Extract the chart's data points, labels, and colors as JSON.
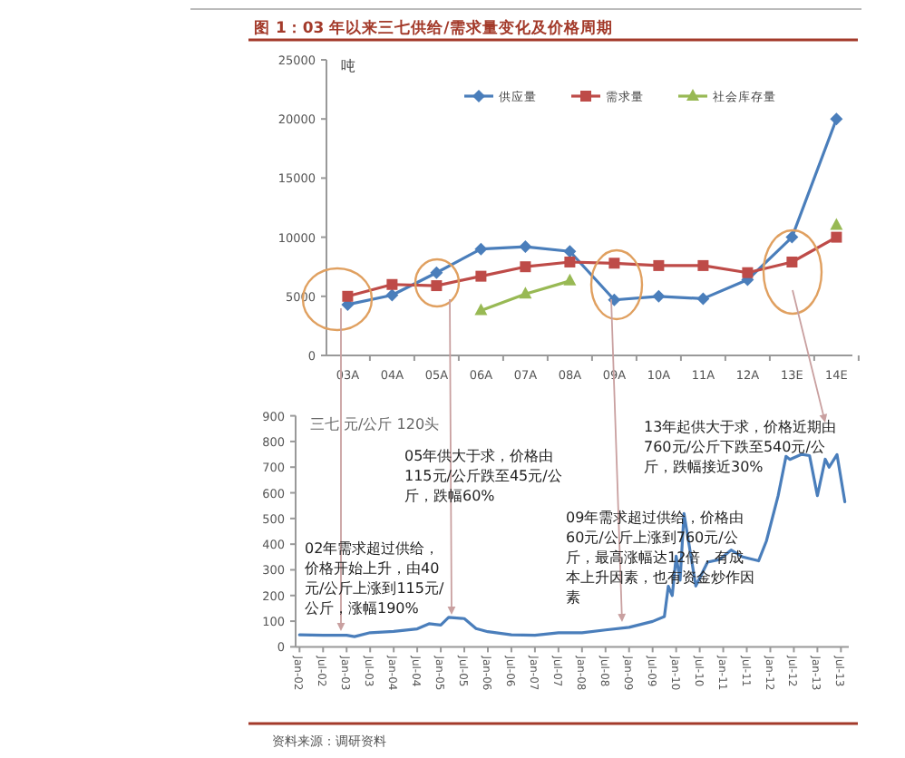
{
  "chart_data": [
    {
      "type": "line",
      "title": "图 1：03 年以来三七供给/需求量变化及价格周期",
      "ylabel": "吨",
      "categories": [
        "03A",
        "04A",
        "05A",
        "06A",
        "07A",
        "08A",
        "09A",
        "10A",
        "11A",
        "12A",
        "13E",
        "14E"
      ],
      "series": [
        {
          "name": "供应量",
          "color": "#4a7ebb",
          "marker": "diamond",
          "values": [
            4300,
            5100,
            7000,
            9000,
            9200,
            8800,
            4700,
            5000,
            4800,
            6400,
            10000,
            20000
          ]
        },
        {
          "name": "需求量",
          "color": "#be4b48",
          "marker": "square",
          "values": [
            5000,
            6000,
            5900,
            6700,
            7500,
            7900,
            7800,
            7600,
            7600,
            7000,
            7900,
            10000
          ]
        },
        {
          "name": "社会库存量",
          "color": "#98b954",
          "marker": "triangle",
          "values": [
            null,
            null,
            null,
            3800,
            5200,
            6300,
            null,
            null,
            null,
            null,
            null,
            11000
          ]
        }
      ],
      "ylim": [
        0,
        25000
      ],
      "yticks": [
        0,
        5000,
        10000,
        15000,
        20000,
        25000
      ],
      "legend": "top",
      "grid": false
    },
    {
      "type": "line",
      "title": "三七 元/公斤 120头",
      "marker": "none",
      "grid": false,
      "legend": false,
      "series": [
        {
          "color": "#4a7ebb",
          "x": [
            "2002-01",
            "2002-07",
            "2003-01",
            "2003-03",
            "2003-07",
            "2004-01",
            "2004-07",
            "2004-10",
            "2005-01",
            "2005-03",
            "2005-07",
            "2005-10",
            "2006-01",
            "2006-07",
            "2007-01",
            "2007-07",
            "2008-01",
            "2008-07",
            "2009-01",
            "2009-07",
            "2009-10",
            "2009-11",
            "2009-12",
            "2010-01",
            "2010-02",
            "2010-03",
            "2010-06",
            "2010-09",
            "2010-12",
            "2011-03",
            "2011-06",
            "2011-10",
            "2011-12",
            "2012-03",
            "2012-05",
            "2012-06",
            "2012-09",
            "2012-11",
            "2013-01",
            "2013-03",
            "2013-04",
            "2013-06",
            "2013-08"
          ],
          "values": [
            47,
            45,
            45,
            40,
            55,
            60,
            70,
            90,
            85,
            115,
            110,
            71,
            59,
            47,
            45,
            55,
            55,
            66,
            76,
            99,
            118,
            236,
            200,
            353,
            260,
            519,
            237,
            330,
            340,
            377,
            350,
            335,
            412,
            589,
            742,
            730,
            750,
            745,
            589,
            731,
            700,
            749,
            565
          ]
        }
      ],
      "xlim": [
        "2001-12",
        "2013-09"
      ],
      "xticks": [
        {
          "value": "2002-01",
          "label": "Jan-02"
        },
        {
          "value": "2002-07",
          "label": "Jul-02"
        },
        {
          "value": "2003-01",
          "label": "Jan-03"
        },
        {
          "value": "2003-07",
          "label": "Jul-03"
        },
        {
          "value": "2004-01",
          "label": "Jan-04"
        },
        {
          "value": "2004-07",
          "label": "Jul-04"
        },
        {
          "value": "2005-01",
          "label": "Jan-05"
        },
        {
          "value": "2005-07",
          "label": "Jul-05"
        },
        {
          "value": "2006-01",
          "label": "Jan-06"
        },
        {
          "value": "2006-07",
          "label": "Jul-06"
        },
        {
          "value": "2007-01",
          "label": "Jan-07"
        },
        {
          "value": "2007-07",
          "label": "Jul-07"
        },
        {
          "value": "2008-01",
          "label": "Jan-08"
        },
        {
          "value": "2008-07",
          "label": "Jul-08"
        },
        {
          "value": "2009-01",
          "label": "Jan-09"
        },
        {
          "value": "2009-07",
          "label": "Jul-09"
        },
        {
          "value": "2010-01",
          "label": "Jan-10"
        },
        {
          "value": "2010-07",
          "label": "Jul-10"
        },
        {
          "value": "2011-01",
          "label": "Jan-11"
        },
        {
          "value": "2011-07",
          "label": "Jul-11"
        },
        {
          "value": "2012-01",
          "label": "Jan-12"
        },
        {
          "value": "2012-07",
          "label": "Jul-12"
        },
        {
          "value": "2013-01",
          "label": "Jan-13"
        },
        {
          "value": "2013-07",
          "label": "Jul-13"
        }
      ],
      "ylim": [
        0,
        900
      ],
      "yticks": [
        0,
        100,
        200,
        300,
        400,
        500,
        600,
        700,
        800,
        900
      ],
      "annotations": [
        "02年需求超过供给，价格开始上升，由40元/公斤上涨到115元/公斤，涨幅190%",
        "05年供大于求，价格由115元/公斤跌至45元/公斤，跌幅60%",
        "09年需求超过供给，价格由60元/公斤上涨到760元/公斤，最高涨幅达12倍，有成本上升因素，也有资金炒作因素",
        "13年起供大于求，价格近期由760元/公斤下跌至540元/公斤，跌幅接近30%",
        "资料来源：调研资料"
      ]
    }
  ]
}
